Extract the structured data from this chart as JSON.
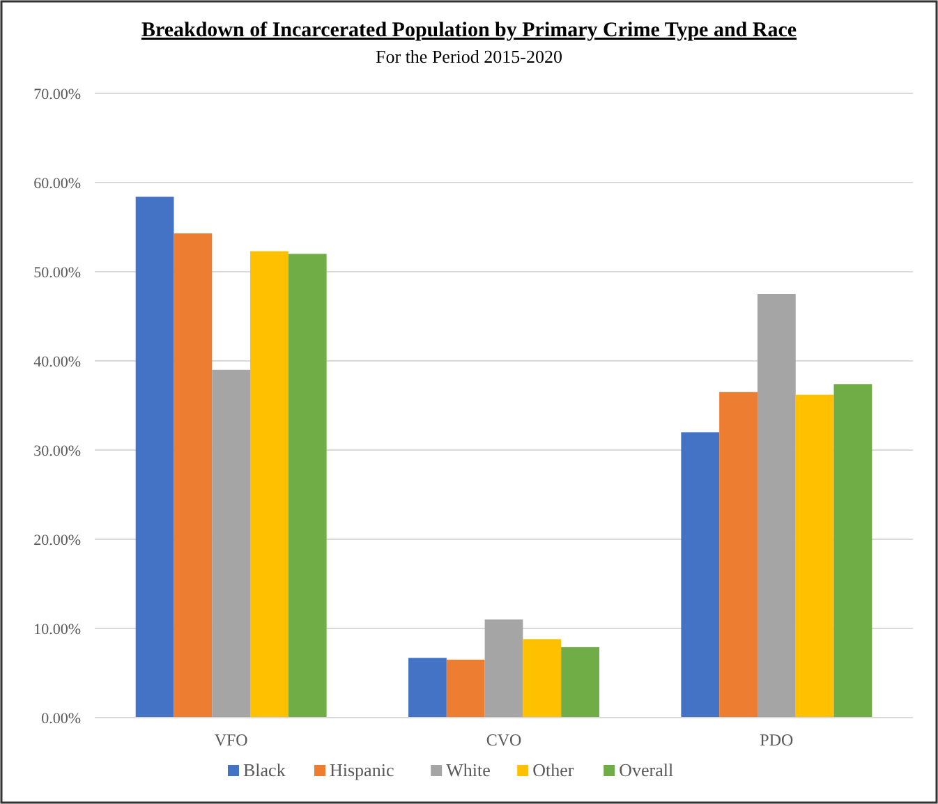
{
  "chart_data": {
    "type": "bar",
    "title": "Breakdown of Incarcerated Population by Primary Crime Type and Race",
    "subtitle": "For the Period 2015-2020",
    "categories": [
      "VFO",
      "CVO",
      "PDO"
    ],
    "series": [
      {
        "name": "Black",
        "color": "#4472c4",
        "values": [
          58.4,
          6.7,
          32.0
        ]
      },
      {
        "name": "Hispanic",
        "color": "#ed7d31",
        "values": [
          54.3,
          6.5,
          36.5
        ]
      },
      {
        "name": "White",
        "color": "#a5a5a5",
        "values": [
          39.0,
          11.0,
          47.5
        ]
      },
      {
        "name": "Other",
        "color": "#ffc000",
        "values": [
          52.3,
          8.8,
          36.2
        ]
      },
      {
        "name": "Overall",
        "color": "#70ad47",
        "values": [
          52.0,
          7.9,
          37.4
        ]
      }
    ],
    "ylim": [
      0,
      70
    ],
    "yticks": [
      {
        "value": 0,
        "label": "0.00%"
      },
      {
        "value": 10,
        "label": "10.00%"
      },
      {
        "value": 20,
        "label": "20.00%"
      },
      {
        "value": 30,
        "label": "30.00%"
      },
      {
        "value": 40,
        "label": "40.00%"
      },
      {
        "value": 50,
        "label": "50.00%"
      },
      {
        "value": 60,
        "label": "60.00%"
      },
      {
        "value": 70,
        "label": "70.00%"
      }
    ],
    "grid": "y",
    "legend": "bottom"
  }
}
